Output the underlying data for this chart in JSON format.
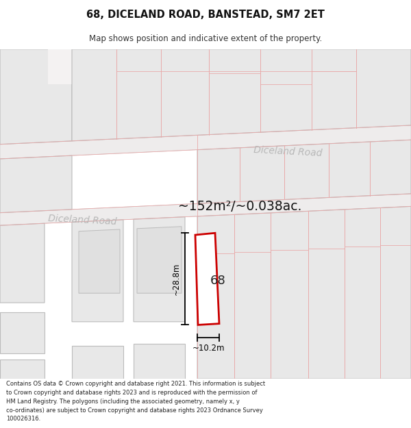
{
  "title_line1": "68, DICELAND ROAD, BANSTEAD, SM7 2ET",
  "title_line2": "Map shows position and indicative extent of the property.",
  "footnote": "Contains OS data © Crown copyright and database right 2021. This information is subject\nto Crown copyright and database rights 2023 and is reproduced with the permission of\nHM Land Registry. The polygons (including the associated geometry, namely x, y\nco-ordinates) are subject to Crown copyright and database rights 2023 Ordnance Survey\n100026316.",
  "area_text": "~152m²/~0.038ac.",
  "dim_vertical": "~28.8m",
  "dim_horizontal": "~10.2m",
  "label_68": "68",
  "road_label_upper": "Diceland Road",
  "road_label_lower": "Diceland Road",
  "bg_color": "#ffffff",
  "map_bg": "#f4f2f2",
  "block_fill": "#e8e8e8",
  "block_edge": "#bbbbbb",
  "road_fill": "#f2f0f0",
  "road_edge": "#dddddd",
  "pink_line": "#e8aaaa",
  "highlight_edge": "#cc0000",
  "highlight_fill": "#ffffff",
  "dim_color": "#000000",
  "area_color": "#111111",
  "road_text_color": "#b8b8b8",
  "label_color": "#222222"
}
